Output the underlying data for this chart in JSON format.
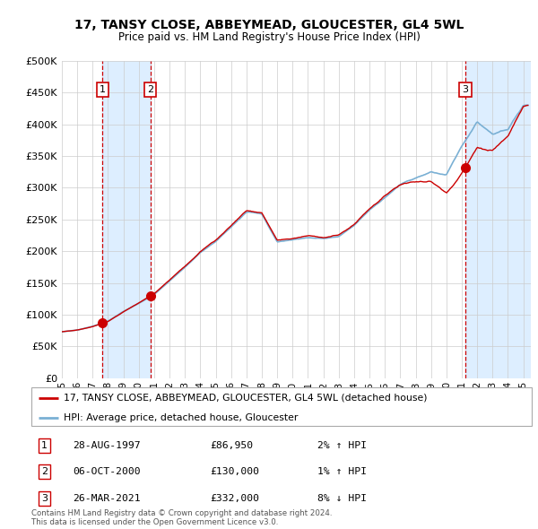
{
  "title": "17, TANSY CLOSE, ABBEYMEAD, GLOUCESTER, GL4 5WL",
  "subtitle": "Price paid vs. HM Land Registry's House Price Index (HPI)",
  "ylim": [
    0,
    500000
  ],
  "yticks": [
    0,
    50000,
    100000,
    150000,
    200000,
    250000,
    300000,
    350000,
    400000,
    450000,
    500000
  ],
  "ytick_labels": [
    "£0",
    "£50K",
    "£100K",
    "£150K",
    "£200K",
    "£250K",
    "£300K",
    "£350K",
    "£400K",
    "£450K",
    "£500K"
  ],
  "hpi_color": "#7ab0d4",
  "price_color": "#cc0000",
  "marker_color": "#cc0000",
  "vline_color_dashed": "#cc0000",
  "vline_color_solid": "#555555",
  "bg_color": "#ffffff",
  "grid_color": "#cccccc",
  "band_color": "#ddeeff",
  "transactions": [
    {
      "label": "1",
      "date_num": 1997.65,
      "price": 86950,
      "pct": "2%",
      "dir": "↑",
      "date_str": "28-AUG-1997"
    },
    {
      "label": "2",
      "date_num": 2000.76,
      "price": 130000,
      "pct": "1%",
      "dir": "↑",
      "date_str": "06-OCT-2000"
    },
    {
      "label": "3",
      "date_num": 2021.23,
      "price": 332000,
      "pct": "8%",
      "dir": "↓",
      "date_str": "26-MAR-2021"
    }
  ],
  "legend_label_price": "17, TANSY CLOSE, ABBEYMEAD, GLOUCESTER, GL4 5WL (detached house)",
  "legend_label_hpi": "HPI: Average price, detached house, Gloucester",
  "footer": "Contains HM Land Registry data © Crown copyright and database right 2024.\nThis data is licensed under the Open Government Licence v3.0.",
  "xmin": 1995.0,
  "xmax": 2025.5,
  "xtick_years": [
    1995,
    1996,
    1997,
    1998,
    1999,
    2000,
    2001,
    2002,
    2003,
    2004,
    2005,
    2006,
    2007,
    2008,
    2009,
    2010,
    2011,
    2012,
    2013,
    2014,
    2015,
    2016,
    2017,
    2018,
    2019,
    2020,
    2021,
    2022,
    2023,
    2024,
    2025
  ]
}
